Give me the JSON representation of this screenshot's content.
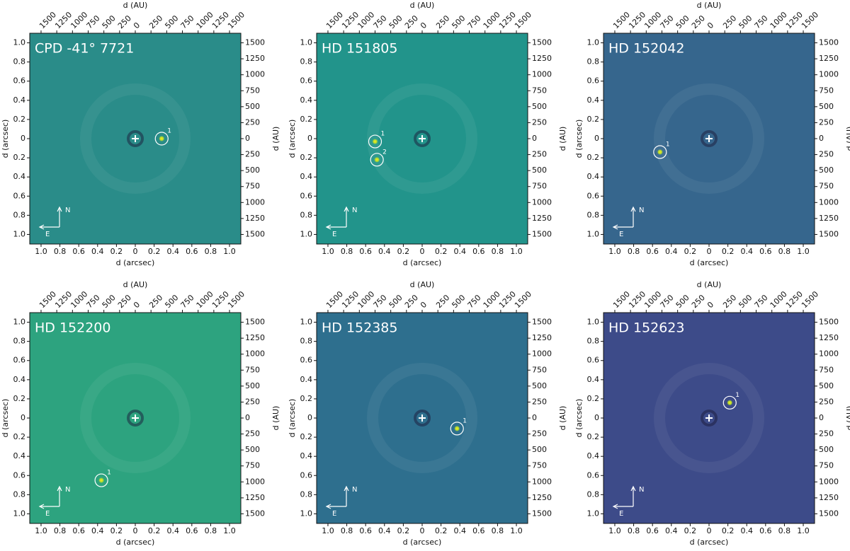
{
  "chart_data": [
    {
      "type": "image",
      "title": "CPD -41° 7721",
      "background": "#2a8c89",
      "xlabel": "d (arcsec)",
      "ylabel": "d (arcsec)",
      "x2label": "d (AU)",
      "y2label": "d (AU)",
      "xlim": [
        -1.12,
        1.12
      ],
      "ylim": [
        -1.1,
        1.1
      ],
      "x2lim": [
        -1680,
        1680
      ],
      "y2lim": [
        -1650,
        1650
      ],
      "xticks": [
        {
          "value": -1,
          "label": "1.0"
        },
        {
          "value": -0.8,
          "label": "0.8"
        },
        {
          "value": -0.6,
          "label": "0.6"
        },
        {
          "value": -0.4,
          "label": "0.4"
        },
        {
          "value": -0.2,
          "label": "0.2"
        },
        0,
        0.2,
        0.4,
        0.6,
        0.8,
        {
          "value": 1,
          "label": "1.0"
        }
      ],
      "yticks": [
        {
          "value": -1,
          "label": "1.0"
        },
        {
          "value": -0.8,
          "label": "0.8"
        },
        {
          "value": -0.6,
          "label": "0.6"
        },
        {
          "value": -0.4,
          "label": "0.4"
        },
        {
          "value": -0.2,
          "label": "0.2"
        },
        0,
        0.2,
        0.4,
        0.6,
        0.8,
        {
          "value": 1,
          "label": "1.0"
        }
      ],
      "x2ticks": [
        {
          "value": -1500,
          "label": "1500"
        },
        {
          "value": -1250,
          "label": "1250"
        },
        {
          "value": -1000,
          "label": "1000"
        },
        {
          "value": -750,
          "label": "750"
        },
        {
          "value": -500,
          "label": "500"
        },
        {
          "value": -250,
          "label": "250"
        },
        0,
        250,
        500,
        750,
        1000,
        1250,
        1500
      ],
      "y2ticks": [
        {
          "value": -1500,
          "label": "1500"
        },
        {
          "value": -1250,
          "label": "1250"
        },
        {
          "value": -1000,
          "label": "1000"
        },
        {
          "value": -750,
          "label": "750"
        },
        {
          "value": -500,
          "label": "500"
        },
        {
          "value": -250,
          "label": "250"
        },
        0,
        250,
        500,
        750,
        1000,
        1250,
        1500
      ],
      "north_label": "N",
      "east_label": "E",
      "sources": [
        {
          "label": "1",
          "x": 0.28,
          "y": 0
        }
      ]
    },
    {
      "type": "image",
      "title": "HD 151805",
      "background": "#22948b",
      "xlabel": "d (arcsec)",
      "ylabel": "d (arcsec)",
      "x2label": "d (AU)",
      "y2label": "d (AU)",
      "xlim": [
        -1.12,
        1.12
      ],
      "ylim": [
        -1.1,
        1.1
      ],
      "x2lim": [
        -1680,
        1680
      ],
      "y2lim": [
        -1650,
        1650
      ],
      "xticks": [
        {
          "value": -1,
          "label": "1.0"
        },
        {
          "value": -0.8,
          "label": "0.8"
        },
        {
          "value": -0.6,
          "label": "0.6"
        },
        {
          "value": -0.4,
          "label": "0.4"
        },
        {
          "value": -0.2,
          "label": "0.2"
        },
        0,
        0.2,
        0.4,
        0.6,
        0.8,
        {
          "value": 1,
          "label": "1.0"
        }
      ],
      "yticks": [
        {
          "value": -1,
          "label": "1.0"
        },
        {
          "value": -0.8,
          "label": "0.8"
        },
        {
          "value": -0.6,
          "label": "0.6"
        },
        {
          "value": -0.4,
          "label": "0.4"
        },
        {
          "value": -0.2,
          "label": "0.2"
        },
        0,
        0.2,
        0.4,
        0.6,
        0.8,
        {
          "value": 1,
          "label": "1.0"
        }
      ],
      "x2ticks": [
        {
          "value": -1500,
          "label": "1500"
        },
        {
          "value": -1250,
          "label": "1250"
        },
        {
          "value": -1000,
          "label": "1000"
        },
        {
          "value": -750,
          "label": "750"
        },
        {
          "value": -500,
          "label": "500"
        },
        {
          "value": -250,
          "label": "250"
        },
        0,
        250,
        500,
        750,
        1000,
        1250,
        1500
      ],
      "y2ticks": [
        {
          "value": -1500,
          "label": "1500"
        },
        {
          "value": -1250,
          "label": "1250"
        },
        {
          "value": -1000,
          "label": "1000"
        },
        {
          "value": -750,
          "label": "750"
        },
        {
          "value": -500,
          "label": "500"
        },
        {
          "value": -250,
          "label": "250"
        },
        0,
        250,
        500,
        750,
        1000,
        1250,
        1500
      ],
      "north_label": "N",
      "east_label": "E",
      "sources": [
        {
          "label": "1",
          "x": -0.5,
          "y": -0.03
        },
        {
          "label": "2",
          "x": -0.48,
          "y": -0.22
        }
      ]
    },
    {
      "type": "image",
      "title": "HD 152042",
      "background": "#36668d",
      "xlabel": "d (arcsec)",
      "ylabel": "d (arcsec)",
      "x2label": "d (AU)",
      "y2label": "d (AU)",
      "xlim": [
        -1.12,
        1.12
      ],
      "ylim": [
        -1.1,
        1.1
      ],
      "x2lim": [
        -1680,
        1680
      ],
      "y2lim": [
        -1650,
        1650
      ],
      "xticks": [
        {
          "value": -1,
          "label": "1.0"
        },
        {
          "value": -0.8,
          "label": "0.8"
        },
        {
          "value": -0.6,
          "label": "0.6"
        },
        {
          "value": -0.4,
          "label": "0.4"
        },
        {
          "value": -0.2,
          "label": "0.2"
        },
        0,
        0.2,
        0.4,
        0.6,
        0.8,
        {
          "value": 1,
          "label": "1.0"
        }
      ],
      "yticks": [
        {
          "value": -1,
          "label": "1.0"
        },
        {
          "value": -0.8,
          "label": "0.8"
        },
        {
          "value": -0.6,
          "label": "0.6"
        },
        {
          "value": -0.4,
          "label": "0.4"
        },
        {
          "value": -0.2,
          "label": "0.2"
        },
        0,
        0.2,
        0.4,
        0.6,
        0.8,
        {
          "value": 1,
          "label": "1.0"
        }
      ],
      "x2ticks": [
        {
          "value": -1500,
          "label": "1500"
        },
        {
          "value": -1250,
          "label": "1250"
        },
        {
          "value": -1000,
          "label": "1000"
        },
        {
          "value": -750,
          "label": "750"
        },
        {
          "value": -500,
          "label": "500"
        },
        {
          "value": -250,
          "label": "250"
        },
        0,
        250,
        500,
        750,
        1000,
        1250,
        1500
      ],
      "y2ticks": [
        {
          "value": -1500,
          "label": "1500"
        },
        {
          "value": -1250,
          "label": "1250"
        },
        {
          "value": -1000,
          "label": "1000"
        },
        {
          "value": -750,
          "label": "750"
        },
        {
          "value": -500,
          "label": "500"
        },
        {
          "value": -250,
          "label": "250"
        },
        0,
        250,
        500,
        750,
        1000,
        1250,
        1500
      ],
      "north_label": "N",
      "east_label": "E",
      "sources": [
        {
          "label": "1",
          "x": -0.52,
          "y": -0.14
        }
      ]
    },
    {
      "type": "image",
      "title": "HD 152200",
      "background": "#2da37f",
      "xlabel": "d (arcsec)",
      "ylabel": "d (arcsec)",
      "x2label": "d (AU)",
      "y2label": "d (AU)",
      "xlim": [
        -1.12,
        1.12
      ],
      "ylim": [
        -1.1,
        1.1
      ],
      "x2lim": [
        -1680,
        1680
      ],
      "y2lim": [
        -1650,
        1650
      ],
      "xticks": [
        {
          "value": -1,
          "label": "1.0"
        },
        {
          "value": -0.8,
          "label": "0.8"
        },
        {
          "value": -0.6,
          "label": "0.6"
        },
        {
          "value": -0.4,
          "label": "0.4"
        },
        {
          "value": -0.2,
          "label": "0.2"
        },
        0,
        0.2,
        0.4,
        0.6,
        0.8,
        {
          "value": 1,
          "label": "1.0"
        }
      ],
      "yticks": [
        {
          "value": -1,
          "label": "1.0"
        },
        {
          "value": -0.8,
          "label": "0.8"
        },
        {
          "value": -0.6,
          "label": "0.6"
        },
        {
          "value": -0.4,
          "label": "0.4"
        },
        {
          "value": -0.2,
          "label": "0.2"
        },
        0,
        0.2,
        0.4,
        0.6,
        0.8,
        {
          "value": 1,
          "label": "1.0"
        }
      ],
      "x2ticks": [
        {
          "value": -1500,
          "label": "1500"
        },
        {
          "value": -1250,
          "label": "1250"
        },
        {
          "value": -1000,
          "label": "1000"
        },
        {
          "value": -750,
          "label": "750"
        },
        {
          "value": -500,
          "label": "500"
        },
        {
          "value": -250,
          "label": "250"
        },
        0,
        250,
        500,
        750,
        1000,
        1250,
        1500
      ],
      "y2ticks": [
        {
          "value": -1500,
          "label": "1500"
        },
        {
          "value": -1250,
          "label": "1250"
        },
        {
          "value": -1000,
          "label": "1000"
        },
        {
          "value": -750,
          "label": "750"
        },
        {
          "value": -500,
          "label": "500"
        },
        {
          "value": -250,
          "label": "250"
        },
        0,
        250,
        500,
        750,
        1000,
        1250,
        1500
      ],
      "north_label": "N",
      "east_label": "E",
      "sources": [
        {
          "label": "1",
          "x": -0.36,
          "y": -0.65
        }
      ]
    },
    {
      "type": "image",
      "title": "HD 152385",
      "background": "#2e6f8e",
      "xlabel": "d (arcsec)",
      "ylabel": "d (arcsec)",
      "x2label": "d (AU)",
      "y2label": "d (AU)",
      "xlim": [
        -1.12,
        1.12
      ],
      "ylim": [
        -1.1,
        1.1
      ],
      "x2lim": [
        -1680,
        1680
      ],
      "y2lim": [
        -1650,
        1650
      ],
      "xticks": [
        {
          "value": -1,
          "label": "1.0"
        },
        {
          "value": -0.8,
          "label": "0.8"
        },
        {
          "value": -0.6,
          "label": "0.6"
        },
        {
          "value": -0.4,
          "label": "0.4"
        },
        {
          "value": -0.2,
          "label": "0.2"
        },
        0,
        0.2,
        0.4,
        0.6,
        0.8,
        {
          "value": 1,
          "label": "1.0"
        }
      ],
      "yticks": [
        {
          "value": -1,
          "label": "1.0"
        },
        {
          "value": -0.8,
          "label": "0.8"
        },
        {
          "value": -0.6,
          "label": "0.6"
        },
        {
          "value": -0.4,
          "label": "0.4"
        },
        {
          "value": -0.2,
          "label": "0.2"
        },
        0,
        0.2,
        0.4,
        0.6,
        0.8,
        {
          "value": 1,
          "label": "1.0"
        }
      ],
      "x2ticks": [
        {
          "value": -1500,
          "label": "1500"
        },
        {
          "value": -1250,
          "label": "1250"
        },
        {
          "value": -1000,
          "label": "1000"
        },
        {
          "value": -750,
          "label": "750"
        },
        {
          "value": -500,
          "label": "500"
        },
        {
          "value": -250,
          "label": "250"
        },
        0,
        250,
        500,
        750,
        1000,
        1250,
        1500
      ],
      "y2ticks": [
        {
          "value": -1500,
          "label": "1500"
        },
        {
          "value": -1250,
          "label": "1250"
        },
        {
          "value": -1000,
          "label": "1000"
        },
        {
          "value": -750,
          "label": "750"
        },
        {
          "value": -500,
          "label": "500"
        },
        {
          "value": -250,
          "label": "250"
        },
        0,
        250,
        500,
        750,
        1000,
        1250,
        1500
      ],
      "north_label": "N",
      "east_label": "E",
      "sources": [
        {
          "label": "1",
          "x": 0.37,
          "y": -0.11
        }
      ]
    },
    {
      "type": "image",
      "title": "HD 152623",
      "background": "#3d4b89",
      "xlabel": "d (arcsec)",
      "ylabel": "d (arcsec)",
      "x2label": "d (AU)",
      "y2label": "d (AU)",
      "xlim": [
        -1.12,
        1.12
      ],
      "ylim": [
        -1.1,
        1.1
      ],
      "x2lim": [
        -1680,
        1680
      ],
      "y2lim": [
        -1650,
        1650
      ],
      "xticks": [
        {
          "value": -1,
          "label": "1.0"
        },
        {
          "value": -0.8,
          "label": "0.8"
        },
        {
          "value": -0.6,
          "label": "0.6"
        },
        {
          "value": -0.4,
          "label": "0.4"
        },
        {
          "value": -0.2,
          "label": "0.2"
        },
        0,
        0.2,
        0.4,
        0.6,
        0.8,
        {
          "value": 1,
          "label": "1.0"
        }
      ],
      "yticks": [
        {
          "value": -1,
          "label": "1.0"
        },
        {
          "value": -0.8,
          "label": "0.8"
        },
        {
          "value": -0.6,
          "label": "0.6"
        },
        {
          "value": -0.4,
          "label": "0.4"
        },
        {
          "value": -0.2,
          "label": "0.2"
        },
        0,
        0.2,
        0.4,
        0.6,
        0.8,
        {
          "value": 1,
          "label": "1.0"
        }
      ],
      "x2ticks": [
        {
          "value": -1500,
          "label": "1500"
        },
        {
          "value": -1250,
          "label": "1250"
        },
        {
          "value": -1000,
          "label": "1000"
        },
        {
          "value": -750,
          "label": "750"
        },
        {
          "value": -500,
          "label": "500"
        },
        {
          "value": -250,
          "label": "250"
        },
        0,
        250,
        500,
        750,
        1000,
        1250,
        1500
      ],
      "y2ticks": [
        {
          "value": -1500,
          "label": "1500"
        },
        {
          "value": -1250,
          "label": "1250"
        },
        {
          "value": -1000,
          "label": "1000"
        },
        {
          "value": -750,
          "label": "750"
        },
        {
          "value": -500,
          "label": "500"
        },
        {
          "value": -250,
          "label": "250"
        },
        0,
        250,
        500,
        750,
        1000,
        1250,
        1500
      ],
      "north_label": "N",
      "east_label": "E",
      "sources": [
        {
          "label": "1",
          "x": 0.22,
          "y": 0.16
        }
      ]
    }
  ]
}
